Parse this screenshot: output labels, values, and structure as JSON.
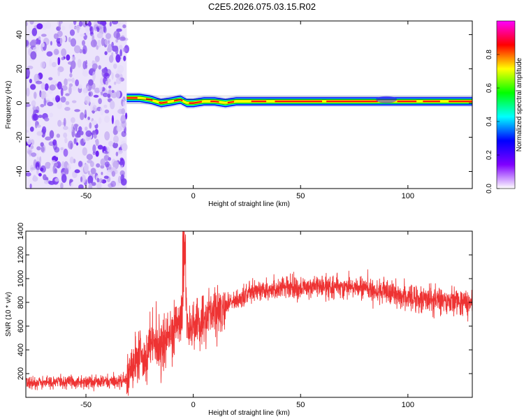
{
  "title": "C2E5.2026.075.03.15.R02",
  "chart_data": [
    {
      "type": "heatmap",
      "xlabel": "Height of straight line (km)",
      "ylabel": "Frequency (Hz)",
      "xlim": [
        -78,
        130
      ],
      "ylim": [
        -50,
        48
      ],
      "xticks": [
        -50,
        0,
        50,
        100
      ],
      "yticks": [
        -40,
        -20,
        0,
        20,
        40
      ],
      "colorbar": {
        "label": "Normalized spectral amplitude",
        "range": [
          0,
          1
        ],
        "ticks": [
          "0.0",
          "0.2",
          "0.4",
          "0.6",
          "0.8"
        ],
        "colors": [
          "#ffffff",
          "#8000ff",
          "#0000ff",
          "#00ffff",
          "#00ff00",
          "#ffff00",
          "#ff0000",
          "#ff00ff"
        ]
      },
      "noise_region_x": [
        -78,
        -31
      ],
      "signal_trace": {
        "x": [
          -31,
          -25,
          -20,
          -15,
          -10,
          -6,
          -3,
          0,
          5,
          10,
          15,
          20,
          30,
          50,
          90,
          130
        ],
        "y": [
          3,
          3,
          2,
          0,
          1,
          2,
          0,
          0,
          1,
          1,
          0,
          1,
          1,
          1,
          1,
          1
        ]
      }
    },
    {
      "type": "line",
      "xlabel": "Height of straight line (km)",
      "ylabel": "SNR (10 * v/v)",
      "xlim": [
        -78,
        130
      ],
      "ylim": [
        0,
        1400
      ],
      "xticks": [
        -50,
        0,
        50,
        100
      ],
      "yticks": [
        200,
        400,
        600,
        800,
        1000,
        1200,
        1400
      ],
      "color": "#ee3333",
      "series": [
        {
          "x": [
            -78,
            -60,
            -40,
            -31,
            -28,
            -25,
            -22,
            -20,
            -15,
            -10,
            -5,
            -4,
            -3,
            0,
            5,
            10,
            15,
            20,
            25,
            30,
            40,
            50,
            60,
            70,
            80,
            90,
            100,
            110,
            120,
            130
          ],
          "y": [
            120,
            130,
            130,
            140,
            300,
            430,
            300,
            520,
            420,
            560,
            650,
            1280,
            560,
            580,
            680,
            720,
            760,
            830,
            870,
            900,
            920,
            920,
            930,
            930,
            920,
            880,
            840,
            830,
            820,
            790
          ]
        }
      ]
    }
  ]
}
